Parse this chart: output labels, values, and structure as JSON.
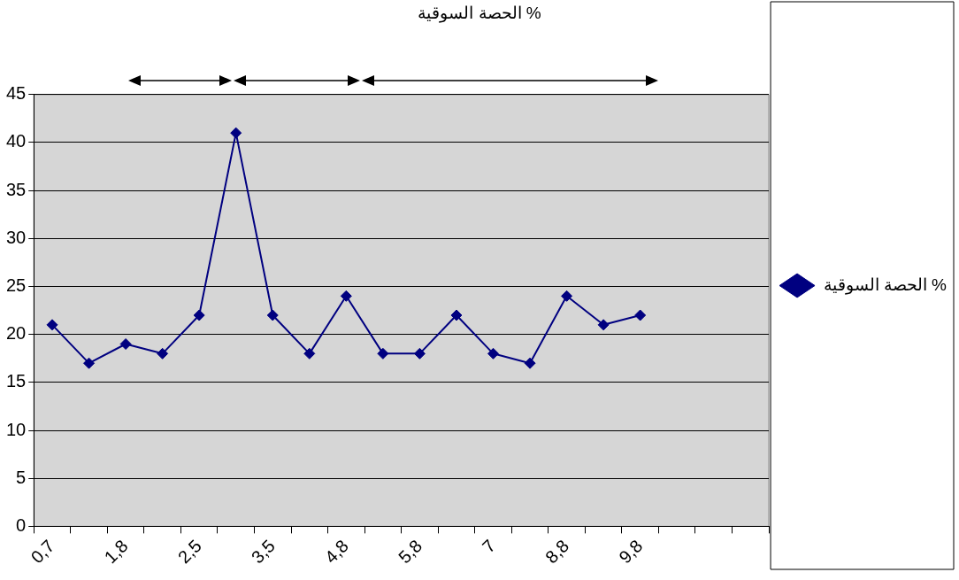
{
  "chart_data": {
    "type": "line",
    "title": "الحصة السوقية %",
    "categories": [
      "0,7",
      null,
      "1,8",
      null,
      "2,5",
      null,
      "3,5",
      null,
      "4,8",
      null,
      "5,8",
      null,
      "7",
      null,
      "8,8",
      null,
      "9,8",
      null,
      null,
      null
    ],
    "series": [
      {
        "name": "الحصة السوقية %",
        "color": "#000080",
        "values": [
          21,
          17,
          19,
          18,
          22,
          41,
          22,
          18,
          24,
          18,
          18,
          22,
          18,
          17,
          24,
          21,
          22,
          null,
          null,
          null
        ]
      }
    ],
    "ylim": [
      0,
      45
    ],
    "yticks": [
      0,
      5,
      10,
      15,
      20,
      25,
      30,
      35,
      40,
      45
    ],
    "grid": "y",
    "legend": "right",
    "marker": "diamond",
    "line_style": "solid"
  }
}
